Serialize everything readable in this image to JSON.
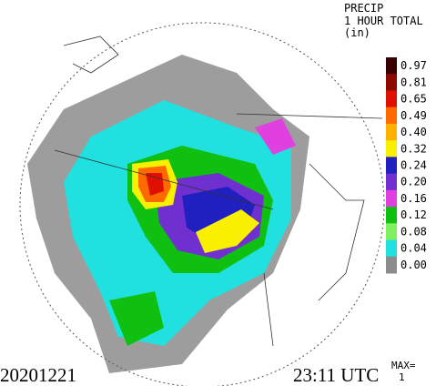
{
  "header": {
    "product": "PRECIP",
    "period": "1 HOUR TOTAL",
    "unit": "(in)"
  },
  "legend": [
    {
      "label": "0.97",
      "color": "#3a0000"
    },
    {
      "label": "0.81",
      "color": "#8a0a00"
    },
    {
      "label": "0.65",
      "color": "#e01000"
    },
    {
      "label": "0.49",
      "color": "#ff6a00"
    },
    {
      "label": "0.40",
      "color": "#ffb000"
    },
    {
      "label": "0.32",
      "color": "#f8f000"
    },
    {
      "label": "0.24",
      "color": "#2020c0"
    },
    {
      "label": "0.20",
      "color": "#7030d0"
    },
    {
      "label": "0.16",
      "color": "#e040e0"
    },
    {
      "label": "0.12",
      "color": "#10c010"
    },
    {
      "label": "0.08",
      "color": "#80f060"
    },
    {
      "label": "0.04",
      "color": "#20e0e0"
    },
    {
      "label": "0.00",
      "color": "#8c8c8c"
    }
  ],
  "footer": {
    "date": "20201221",
    "time": "23:11 UTC",
    "max_label": "MAX=",
    "max_value": "1"
  }
}
